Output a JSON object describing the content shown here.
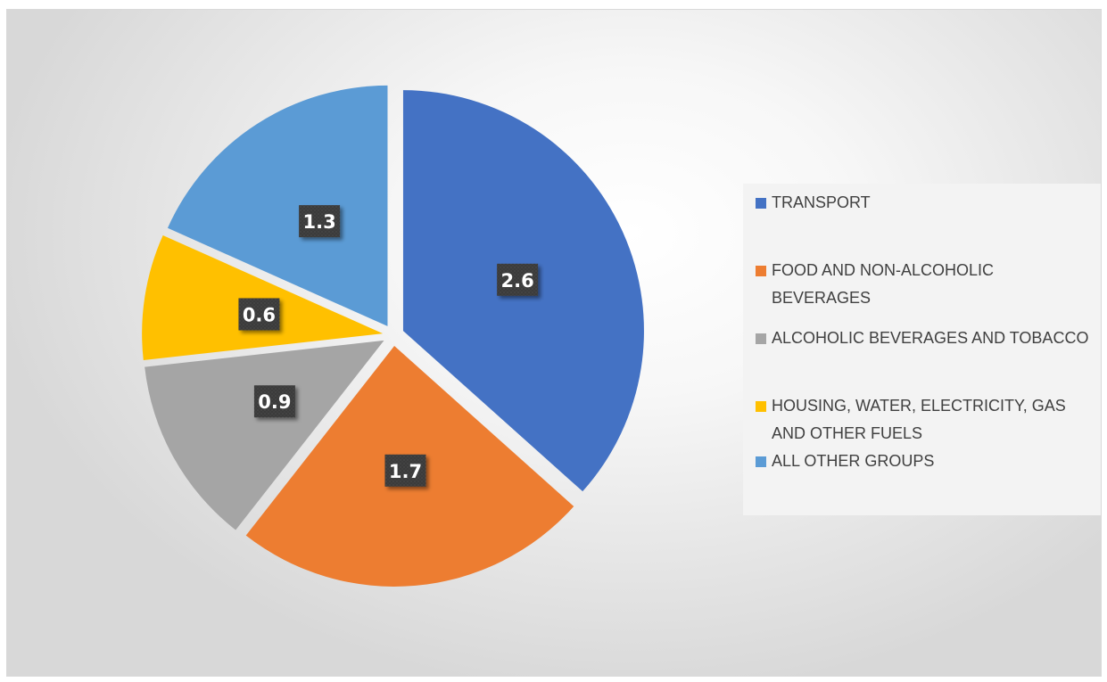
{
  "chart_data": {
    "type": "pie",
    "title": "",
    "slices": [
      {
        "label": "TRANSPORT",
        "value": 2.6,
        "display": "2.6",
        "color": "#4472C4"
      },
      {
        "label": "FOOD AND NON-ALCOHOLIC BEVERAGES",
        "value": 1.7,
        "display": "1.7",
        "color": "#ED7D31"
      },
      {
        "label": "ALCOHOLIC BEVERAGES AND TOBACCO",
        "value": 0.9,
        "display": "0.9",
        "color": "#A5A5A5"
      },
      {
        "label": "HOUSING, WATER, ELECTRICITY, GAS AND OTHER FUELS",
        "value": 0.6,
        "display": "0.6",
        "color": "#FFC000"
      },
      {
        "label": "ALL OTHER GROUPS",
        "value": 1.3,
        "display": "1.3",
        "color": "#5B9BD5"
      }
    ],
    "exploded": true,
    "legend_position": "right",
    "data_labels": "value, dark boxes inside slices"
  }
}
